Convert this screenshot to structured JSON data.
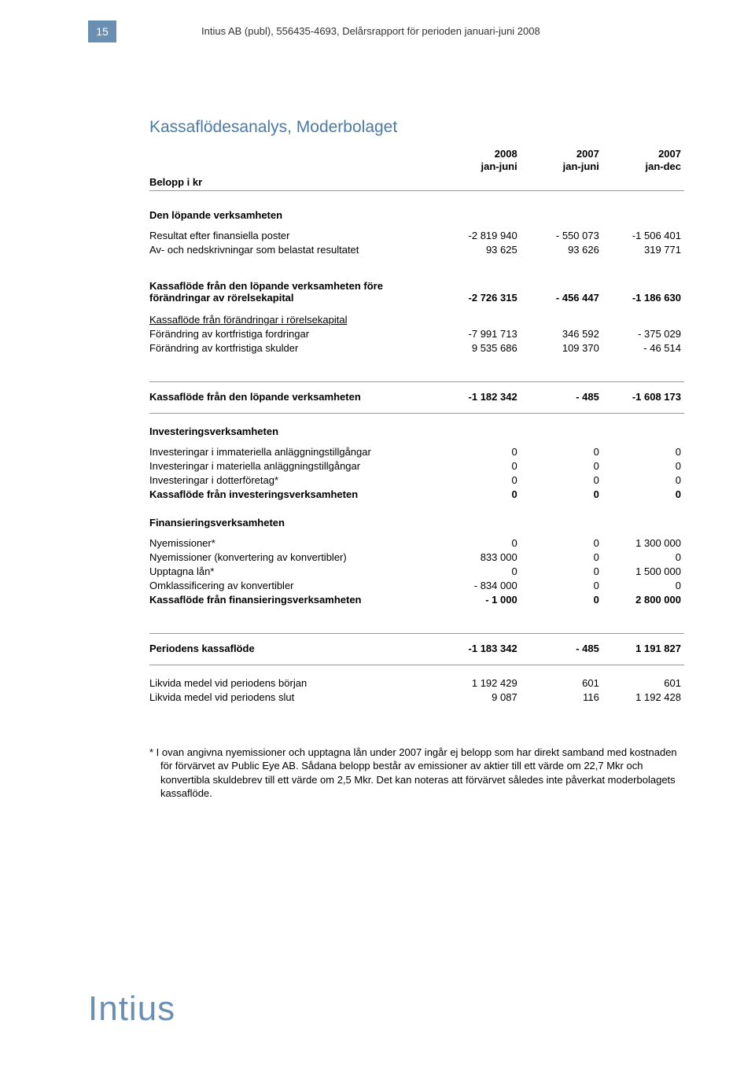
{
  "page_number": "15",
  "header": "Intius AB (publ), 556435-4693, Delårsrapport för perioden januari-juni 2008",
  "title": "Kassaflödesanalys, Moderbolaget",
  "row_label_header": "Belopp i kr",
  "columns": [
    {
      "l1": "2008",
      "l2": "jan-juni"
    },
    {
      "l1": "2007",
      "l2": "jan-juni"
    },
    {
      "l1": "2007",
      "l2": "jan-dec"
    }
  ],
  "sections": [
    {
      "heading": "Den löpande verksamheten",
      "rows": [
        {
          "label": "Resultat efter finansiella poster",
          "c1": "-2 819 940",
          "c2": "- 550 073",
          "c3": "-1 506 401"
        },
        {
          "label": "Av- och nedskrivningar som belastat resultatet",
          "c1": "93 625",
          "c2": "93 626",
          "c3": "319 771"
        }
      ]
    },
    {
      "subtotal": {
        "label": "Kassaflöde från den löpande verksamheten före förändringar av rörelsekapital",
        "c1": "-2 726 315",
        "c2": "- 456 447",
        "c3": "-1 186 630",
        "bold": true
      }
    },
    {
      "subhead_underline": "Kassaflöde från förändringar i rörelsekapital",
      "rows": [
        {
          "label": "Förändring av kortfristiga fordringar",
          "c1": "-7 991 713",
          "c2": "346 592",
          "c3": "- 375 029"
        },
        {
          "label": "Förändring av kortfristiga skulder",
          "c1": "9 535 686",
          "c2": "109 370",
          "c3": "- 46 514"
        }
      ]
    },
    {
      "divider_subtotal": {
        "label": "Kassaflöde från den löpande verksamheten",
        "c1": "-1 182 342",
        "c2": "- 485",
        "c3": "-1 608 173",
        "bold": true
      }
    },
    {
      "heading": "Investeringsverksamheten",
      "rows": [
        {
          "label": "Investeringar i immateriella anläggningstillgångar",
          "c1": "0",
          "c2": "0",
          "c3": "0"
        },
        {
          "label": "Investeringar i materiella anläggningstillgångar",
          "c1": "0",
          "c2": "0",
          "c3": "0"
        },
        {
          "label": "Investeringar i dotterföretag*",
          "c1": "0",
          "c2": "0",
          "c3": "0"
        },
        {
          "label": "Kassaflöde från investeringsverksamheten",
          "c1": "0",
          "c2": "0",
          "c3": "0",
          "bold": true
        }
      ]
    },
    {
      "heading": "Finansieringsverksamheten",
      "rows": [
        {
          "label": "Nyemissioner*",
          "c1": "0",
          "c2": "0",
          "c3": "1 300 000"
        },
        {
          "label": "Nyemissioner (konvertering av konvertibler)",
          "c1": "833 000",
          "c2": "0",
          "c3": "0"
        },
        {
          "label": "Upptagna lån*",
          "c1": "0",
          "c2": "0",
          "c3": "1 500 000"
        },
        {
          "label": "Omklassificering av konvertibler",
          "c1": "- 834 000",
          "c2": "0",
          "c3": "0"
        },
        {
          "label": "Kassaflöde från finansieringsverksamheten",
          "c1": "- 1 000",
          "c2": "0",
          "c3": "2 800 000",
          "bold": true
        }
      ]
    },
    {
      "divider_subtotal": {
        "label": "Periodens kassaflöde",
        "c1": "-1 183 342",
        "c2": "- 485",
        "c3": "1 191 827",
        "bold": true
      }
    },
    {
      "rows": [
        {
          "label": "Likvida medel vid periodens början",
          "c1": "1 192 429",
          "c2": "601",
          "c3": "601"
        },
        {
          "label": "Likvida medel vid periodens slut",
          "c1": "9 087",
          "c2": "116",
          "c3": "1 192 428"
        }
      ]
    }
  ],
  "footnote": "*  I ovan angivna nyemissioner och upptagna lån under 2007 ingår ej belopp som har direkt samband med kostnaden för förvärvet av Public Eye AB. Sådana belopp består av emissioner av aktier till ett värde om 22,7 Mkr och konvertibla skuldebrev till ett värde om 2,5 Mkr. Det kan noteras att förvärvet således inte påverkat moderbolagets kassaflöde.",
  "logo": "Intius",
  "colors": {
    "accent": "#6b8fb3",
    "title": "#4a7aa8",
    "text": "#000000",
    "divider": "#999999"
  }
}
